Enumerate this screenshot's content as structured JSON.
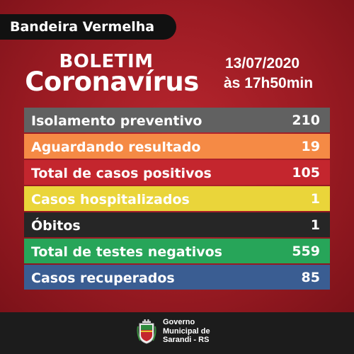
{
  "badge": "Bandeira Vermelha",
  "title": {
    "line1": "BOLETIM",
    "line2": "Coronavírus"
  },
  "date": "13/07/2020",
  "time": "às 17h50min",
  "rows": [
    {
      "label": "Isolamento preventivo",
      "value": "210",
      "color": "#616161",
      "text_color": "#ffffff"
    },
    {
      "label": "Aguardando resultado",
      "value": "19",
      "color": "#f58a45",
      "text_color": "#ffffff"
    },
    {
      "label": "Total de casos positivos",
      "value": "105",
      "color": "#c4262e",
      "text_color": "#ffffff"
    },
    {
      "label": "Casos hospitalizados",
      "value": "1",
      "color": "#ead53a",
      "text_color": "#ffffff"
    },
    {
      "label": "Óbitos",
      "value": "1",
      "color": "#262626",
      "text_color": "#ffffff"
    },
    {
      "label": "Total de testes negativos",
      "value": "559",
      "color": "#27a559",
      "text_color": "#ffffff"
    },
    {
      "label": "Casos recuperados",
      "value": "85",
      "color": "#3a5d92",
      "text_color": "#ffffff"
    }
  ],
  "footer": {
    "crest_icon": "municipal-crest-icon",
    "lines": [
      "Governo",
      "Municipal de",
      "Sarandi - RS"
    ]
  }
}
